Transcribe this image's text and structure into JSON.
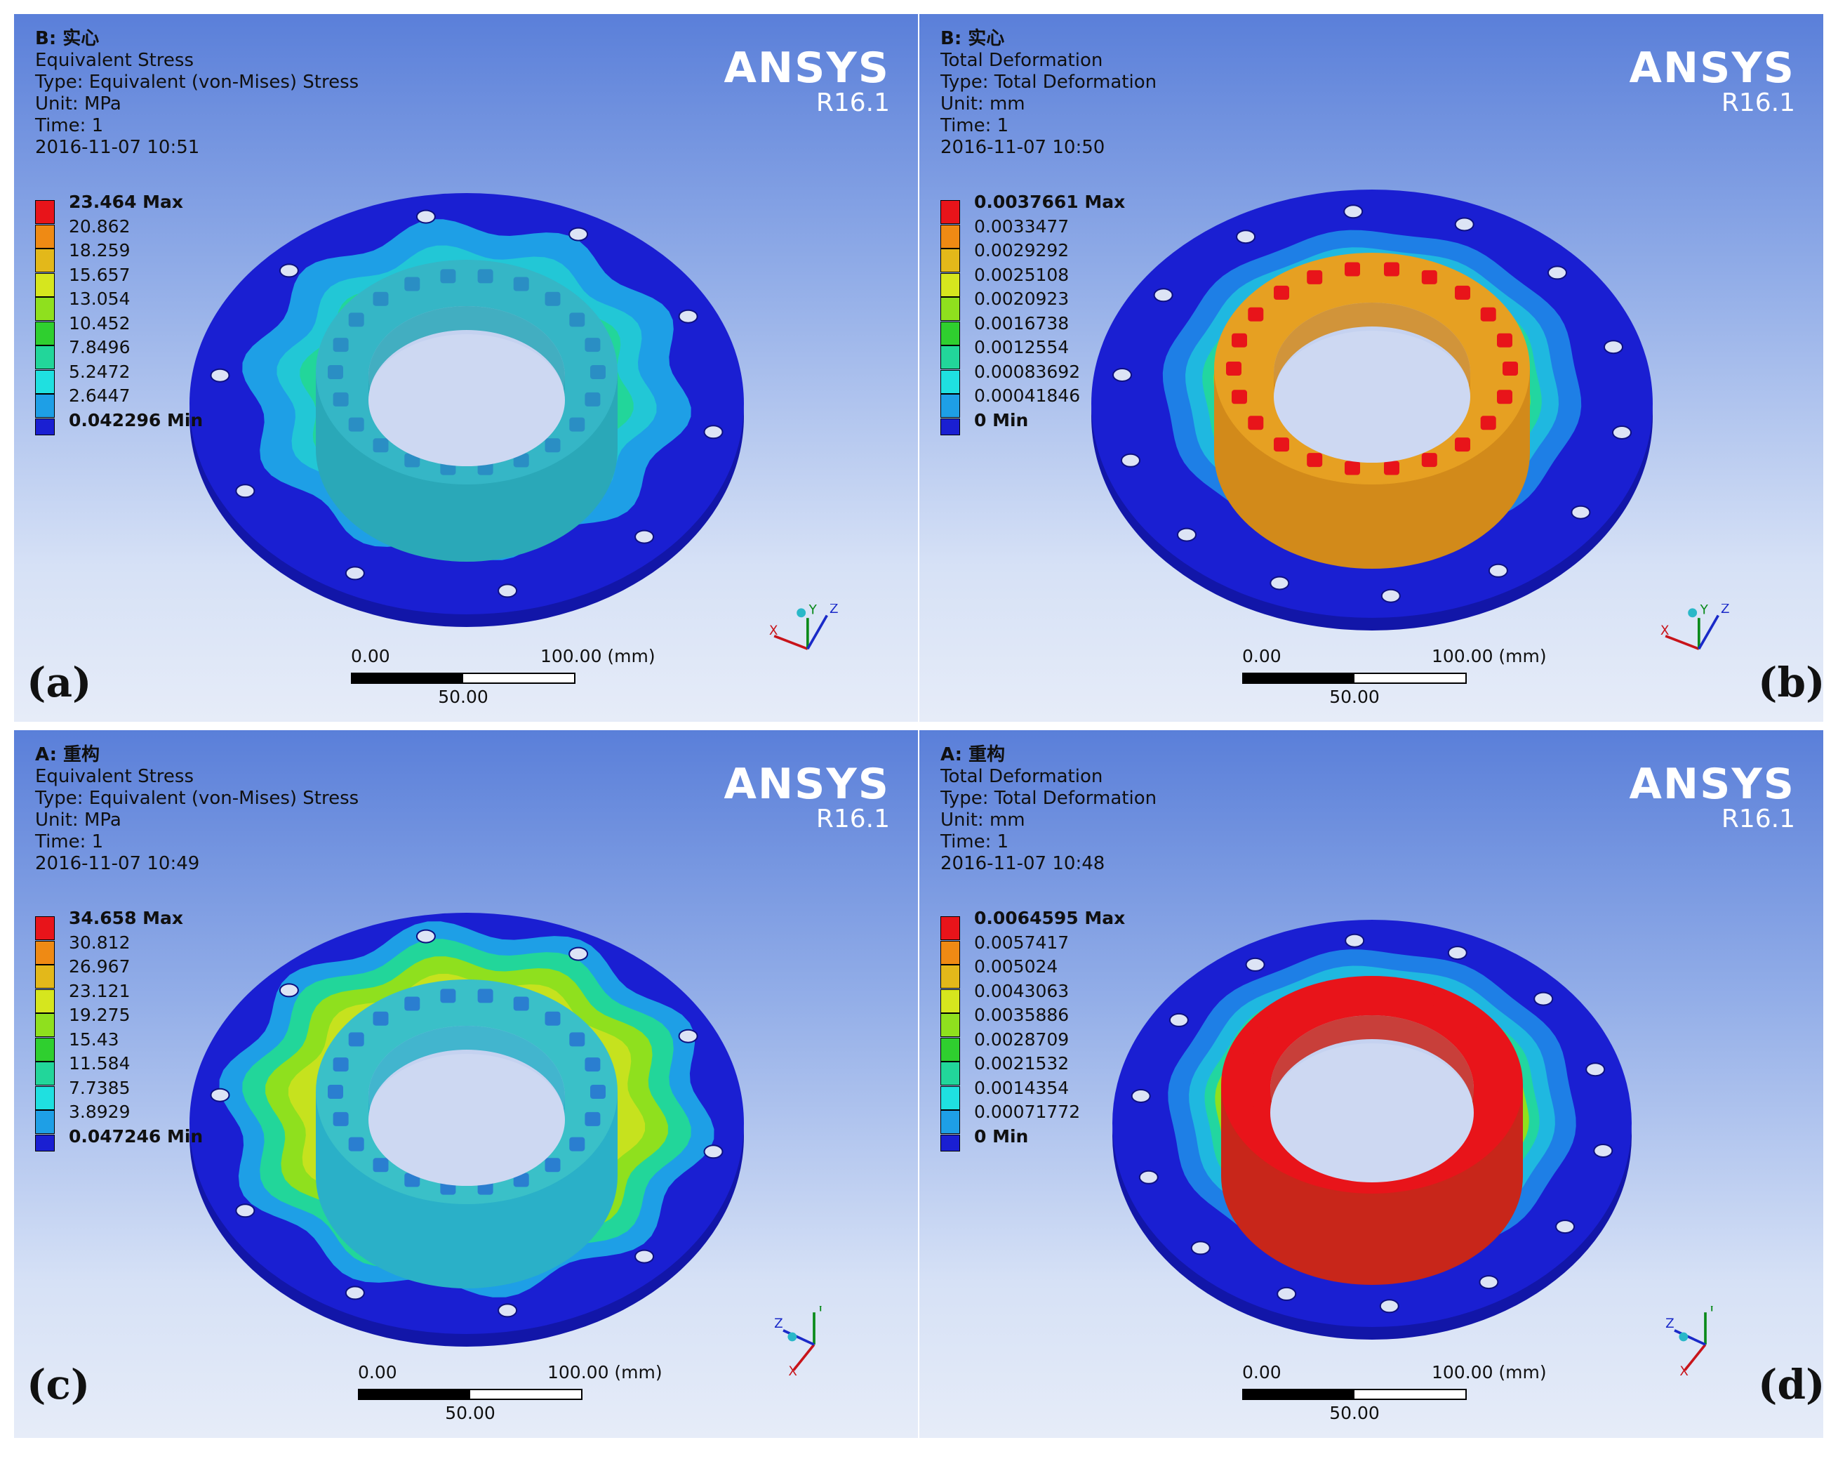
{
  "panels": [
    {
      "label": "(a)",
      "title": "B: 实心",
      "result": "Equivalent Stress",
      "type_line": "Type: Equivalent (von-Mises) Stress",
      "unit_line": "Unit: MPa",
      "time_line": "Time: 1",
      "date_line": "2016-11-07 10:51",
      "brand": "ANSYS",
      "version": "R16.1",
      "legend": [
        "23.464 Max",
        "20.862",
        "18.259",
        "15.657",
        "13.054",
        "10.452",
        "7.8496",
        "5.2472",
        "2.6447",
        "0.042296 Min"
      ],
      "scale": {
        "left": "0.00",
        "right": "100.00 (mm)",
        "mid": "50.00"
      },
      "triad": [
        "X",
        "Y",
        "Z"
      ]
    },
    {
      "label": "(b)",
      "title": "B: 实心",
      "result": "Total Deformation",
      "type_line": "Type: Total Deformation",
      "unit_line": "Unit: mm",
      "time_line": "Time: 1",
      "date_line": "2016-11-07 10:50",
      "brand": "ANSYS",
      "version": "R16.1",
      "legend": [
        "0.0037661 Max",
        "0.0033477",
        "0.0029292",
        "0.0025108",
        "0.0020923",
        "0.0016738",
        "0.0012554",
        "0.00083692",
        "0.00041846",
        "0 Min"
      ],
      "scale": {
        "left": "0.00",
        "right": "100.00 (mm)",
        "mid": "50.00"
      },
      "triad": [
        "X",
        "Y",
        "Z"
      ]
    },
    {
      "label": "(c)",
      "title": "A: 重构",
      "result": "Equivalent Stress",
      "type_line": "Type: Equivalent (von-Mises) Stress",
      "unit_line": "Unit: MPa",
      "time_line": "Time: 1",
      "date_line": "2016-11-07 10:49",
      "brand": "ANSYS",
      "version": "R16.1",
      "legend": [
        "34.658 Max",
        "30.812",
        "26.967",
        "23.121",
        "19.275",
        "15.43",
        "11.584",
        "7.7385",
        "3.8929",
        "0.047246 Min"
      ],
      "scale": {
        "left": "0.00",
        "right": "100.00 (mm)",
        "mid": "50.00"
      },
      "triad": [
        "X",
        "Y",
        "Z"
      ]
    },
    {
      "label": "(d)",
      "title": "A: 重构",
      "result": "Total Deformation",
      "type_line": "Type: Total Deformation",
      "unit_line": "Unit: mm",
      "time_line": "Time: 1",
      "date_line": "2016-11-07 10:48",
      "brand": "ANSYS",
      "version": "R16.1",
      "legend": [
        "0.0064595 Max",
        "0.0057417",
        "0.005024",
        "0.0043063",
        "0.0035886",
        "0.0028709",
        "0.0021532",
        "0.0014354",
        "0.00071772",
        "0 Min"
      ],
      "scale": {
        "left": "0.00",
        "right": "100.00 (mm)",
        "mid": "50.00"
      },
      "triad": [
        "X",
        "Y",
        "Z"
      ]
    }
  ],
  "colors": {
    "legend_scale": [
      "#e8141a",
      "#ef8a14",
      "#e3b81a",
      "#d6e61e",
      "#8fe01e",
      "#2fcf2f",
      "#22d69a",
      "#1fe0e0",
      "#1e9fe6",
      "#1a1fd2"
    ],
    "flange": "#1a1fd2",
    "hole": "#dde4f5"
  }
}
